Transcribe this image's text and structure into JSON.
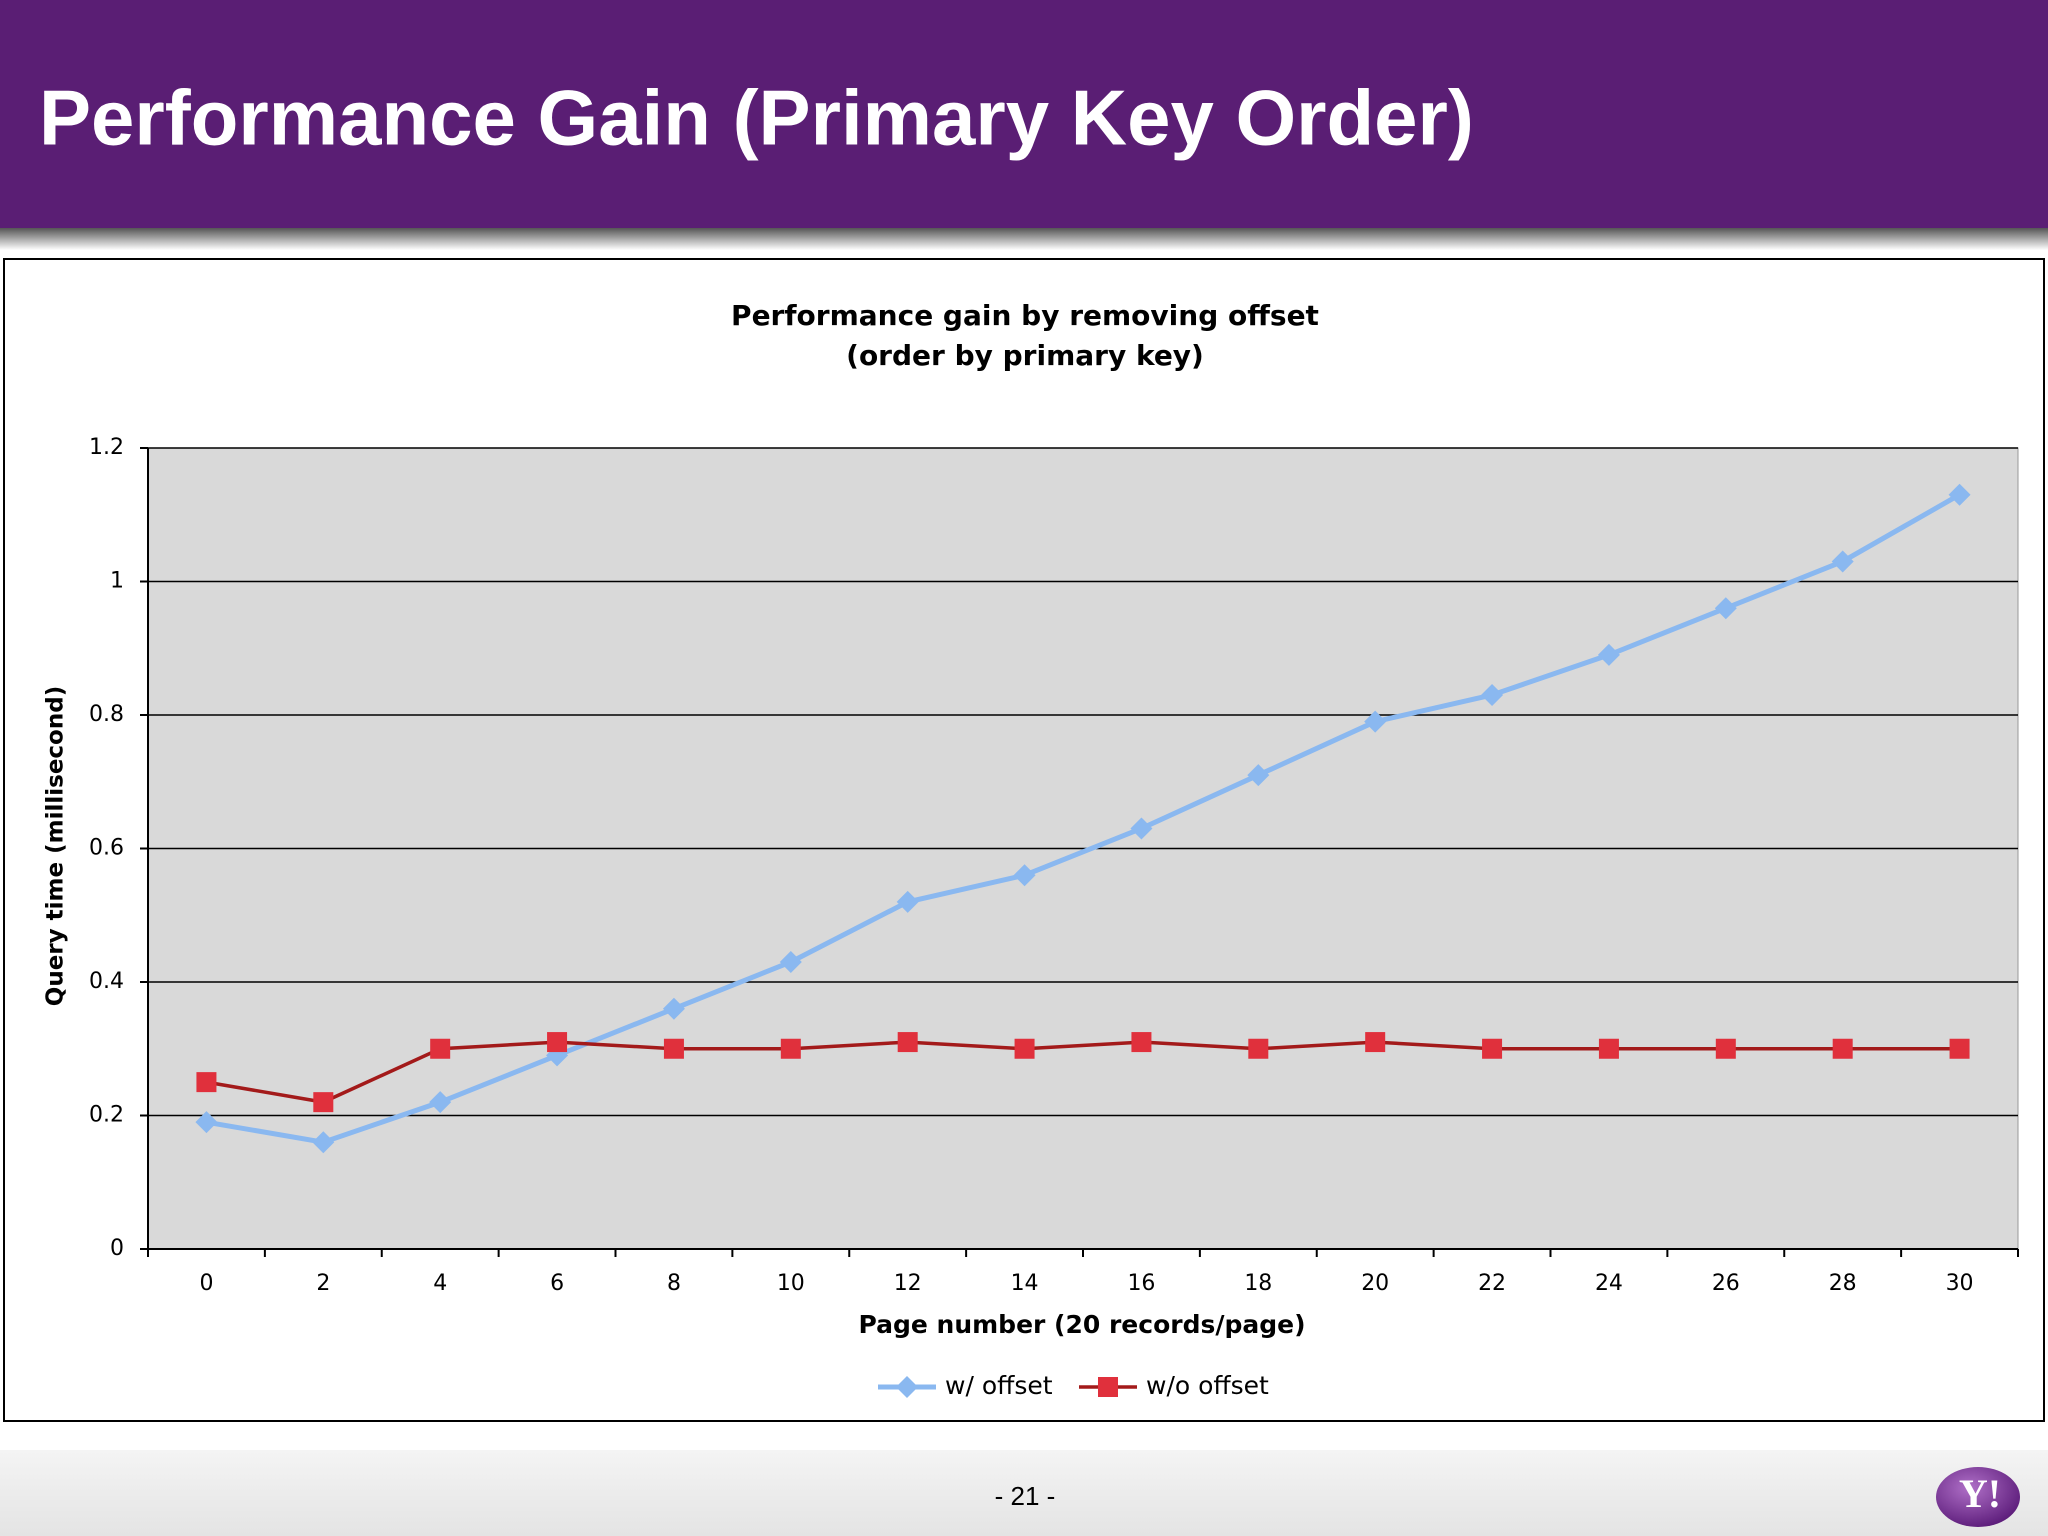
{
  "header": {
    "title": "Performance Gain (Primary Key Order)"
  },
  "footer": {
    "page": "- 21 -",
    "logo": "Y!"
  },
  "chart_data": {
    "type": "line",
    "title": [
      "Performance gain by removing offset",
      "(order by primary key)"
    ],
    "x_label": "Page number (20 records/page)",
    "y_label": "Query time (millisecond)",
    "categories": [
      "0",
      "2",
      "4",
      "6",
      "8",
      "10",
      "12",
      "14",
      "16",
      "18",
      "20",
      "22",
      "24",
      "26",
      "28",
      "30"
    ],
    "series": [
      {
        "name": "w/ offset",
        "color": "#8ab8f0",
        "marker": "diamond",
        "values": [
          0.19,
          0.16,
          0.22,
          0.29,
          0.36,
          0.43,
          0.52,
          0.56,
          0.63,
          0.71,
          0.79,
          0.83,
          0.89,
          0.96,
          1.03,
          1.13
        ]
      },
      {
        "name": "w/o offset",
        "color": "#a31a1a",
        "marker": "square",
        "values": [
          0.25,
          0.22,
          0.3,
          0.31,
          0.3,
          0.3,
          0.31,
          0.3,
          0.31,
          0.3,
          0.31,
          0.3,
          0.3,
          0.3,
          0.3,
          0.3
        ]
      }
    ],
    "ylim": [
      0,
      1.2
    ],
    "yticks": [
      0,
      0.2,
      0.4,
      0.6,
      0.8,
      1,
      1.2
    ],
    "grid": true,
    "legend": "bottom"
  }
}
